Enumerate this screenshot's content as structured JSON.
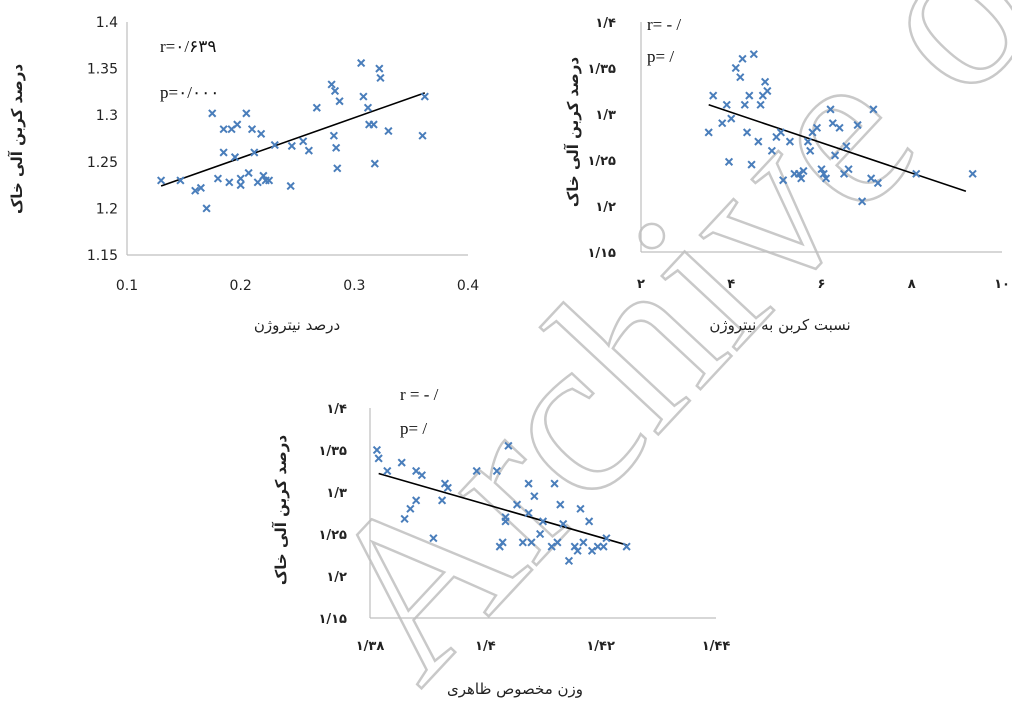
{
  "watermark": "Archive of SID",
  "chart_data": [
    {
      "type": "scatter",
      "title": "",
      "xlabel": "درصد نیتروژن",
      "ylabel": "درصد کربن آلی خاک",
      "xlim": [
        0.1,
        0.4
      ],
      "ylim": [
        1.15,
        1.4
      ],
      "xticks": [
        "0.1",
        "0.2",
        "0.3",
        "0.4"
      ],
      "yticks": [
        "1.15",
        "1.2",
        "1.25",
        "1.3",
        "1.35",
        "1.4"
      ],
      "annotations": [
        "r=۰/۶۳۹",
        "p=۰/۰۰۰"
      ],
      "marker": "x",
      "color": "#4a7ebb",
      "trendline": {
        "x": [
          0.13,
          0.362
        ],
        "y": [
          1.224,
          1.324
        ]
      },
      "points": [
        {
          "x": 0.13,
          "y": 1.23
        },
        {
          "x": 0.147,
          "y": 1.23
        },
        {
          "x": 0.16,
          "y": 1.219
        },
        {
          "x": 0.165,
          "y": 1.222
        },
        {
          "x": 0.17,
          "y": 1.2
        },
        {
          "x": 0.175,
          "y": 1.302
        },
        {
          "x": 0.18,
          "y": 1.232
        },
        {
          "x": 0.185,
          "y": 1.26
        },
        {
          "x": 0.185,
          "y": 1.285
        },
        {
          "x": 0.19,
          "y": 1.228
        },
        {
          "x": 0.192,
          "y": 1.285
        },
        {
          "x": 0.195,
          "y": 1.255
        },
        {
          "x": 0.197,
          "y": 1.29
        },
        {
          "x": 0.2,
          "y": 1.232
        },
        {
          "x": 0.2,
          "y": 1.225
        },
        {
          "x": 0.205,
          "y": 1.302
        },
        {
          "x": 0.207,
          "y": 1.238
        },
        {
          "x": 0.21,
          "y": 1.285
        },
        {
          "x": 0.212,
          "y": 1.26
        },
        {
          "x": 0.215,
          "y": 1.228
        },
        {
          "x": 0.218,
          "y": 1.28
        },
        {
          "x": 0.22,
          "y": 1.235
        },
        {
          "x": 0.222,
          "y": 1.23
        },
        {
          "x": 0.225,
          "y": 1.23
        },
        {
          "x": 0.23,
          "y": 1.268
        },
        {
          "x": 0.244,
          "y": 1.224
        },
        {
          "x": 0.245,
          "y": 1.267
        },
        {
          "x": 0.255,
          "y": 1.272
        },
        {
          "x": 0.26,
          "y": 1.262
        },
        {
          "x": 0.267,
          "y": 1.308
        },
        {
          "x": 0.28,
          "y": 1.333
        },
        {
          "x": 0.282,
          "y": 1.278
        },
        {
          "x": 0.283,
          "y": 1.326
        },
        {
          "x": 0.284,
          "y": 1.265
        },
        {
          "x": 0.285,
          "y": 1.243
        },
        {
          "x": 0.287,
          "y": 1.315
        },
        {
          "x": 0.306,
          "y": 1.356
        },
        {
          "x": 0.308,
          "y": 1.32
        },
        {
          "x": 0.312,
          "y": 1.308
        },
        {
          "x": 0.313,
          "y": 1.29
        },
        {
          "x": 0.317,
          "y": 1.29
        },
        {
          "x": 0.318,
          "y": 1.248
        },
        {
          "x": 0.322,
          "y": 1.35
        },
        {
          "x": 0.323,
          "y": 1.34
        },
        {
          "x": 0.33,
          "y": 1.283
        },
        {
          "x": 0.36,
          "y": 1.278
        },
        {
          "x": 0.362,
          "y": 1.32
        }
      ]
    },
    {
      "type": "scatter",
      "title": "",
      "xlabel": "نسبت کربن به نیتروژن",
      "ylabel": "درصد کربن آلی خاک",
      "xlim": [
        2,
        10
      ],
      "ylim": [
        1.15,
        1.4
      ],
      "xticks": [
        "۲",
        "۴",
        "۶",
        "۸",
        "۱۰"
      ],
      "yticks": [
        "۱/۱۵",
        "۱/۲",
        "۱/۲۵",
        "۱/۳",
        "۱/۳۵",
        "۱/۴"
      ],
      "annotations": [
        "r= -  /",
        "p=  /"
      ],
      "marker": "x",
      "color": "#4a7ebb",
      "trendline": {
        "x": [
          3.5,
          9.2
        ],
        "y": [
          1.31,
          1.216
        ]
      },
      "points": [
        {
          "x": 3.5,
          "y": 1.28
        },
        {
          "x": 3.6,
          "y": 1.32
        },
        {
          "x": 3.8,
          "y": 1.29
        },
        {
          "x": 3.9,
          "y": 1.31
        },
        {
          "x": 3.95,
          "y": 1.248
        },
        {
          "x": 4.0,
          "y": 1.295
        },
        {
          "x": 4.1,
          "y": 1.35
        },
        {
          "x": 4.2,
          "y": 1.34
        },
        {
          "x": 4.25,
          "y": 1.36
        },
        {
          "x": 4.3,
          "y": 1.31
        },
        {
          "x": 4.35,
          "y": 1.28
        },
        {
          "x": 4.4,
          "y": 1.32
        },
        {
          "x": 4.45,
          "y": 1.245
        },
        {
          "x": 4.5,
          "y": 1.365
        },
        {
          "x": 4.6,
          "y": 1.27
        },
        {
          "x": 4.65,
          "y": 1.31
        },
        {
          "x": 4.7,
          "y": 1.32
        },
        {
          "x": 4.75,
          "y": 1.335
        },
        {
          "x": 4.8,
          "y": 1.325
        },
        {
          "x": 4.9,
          "y": 1.26
        },
        {
          "x": 5.0,
          "y": 1.275
        },
        {
          "x": 5.1,
          "y": 1.28
        },
        {
          "x": 5.15,
          "y": 1.228
        },
        {
          "x": 5.3,
          "y": 1.27
        },
        {
          "x": 5.4,
          "y": 1.235
        },
        {
          "x": 5.5,
          "y": 1.235
        },
        {
          "x": 5.55,
          "y": 1.23
        },
        {
          "x": 5.6,
          "y": 1.238
        },
        {
          "x": 5.7,
          "y": 1.27
        },
        {
          "x": 5.75,
          "y": 1.26
        },
        {
          "x": 5.8,
          "y": 1.28
        },
        {
          "x": 5.9,
          "y": 1.285
        },
        {
          "x": 6.0,
          "y": 1.24
        },
        {
          "x": 6.05,
          "y": 1.235
        },
        {
          "x": 6.1,
          "y": 1.23
        },
        {
          "x": 6.2,
          "y": 1.305
        },
        {
          "x": 6.25,
          "y": 1.29
        },
        {
          "x": 6.3,
          "y": 1.255
        },
        {
          "x": 6.4,
          "y": 1.285
        },
        {
          "x": 6.5,
          "y": 1.235
        },
        {
          "x": 6.55,
          "y": 1.265
        },
        {
          "x": 6.6,
          "y": 1.24
        },
        {
          "x": 6.8,
          "y": 1.288
        },
        {
          "x": 6.9,
          "y": 1.205
        },
        {
          "x": 7.1,
          "y": 1.23
        },
        {
          "x": 7.15,
          "y": 1.305
        },
        {
          "x": 7.25,
          "y": 1.225
        },
        {
          "x": 8.1,
          "y": 1.235
        },
        {
          "x": 9.35,
          "y": 1.235
        }
      ]
    },
    {
      "type": "scatter",
      "title": "",
      "xlabel": "وزن مخصوص ظاهری",
      "ylabel": "درصد کربن آلی خاک",
      "xlim": [
        1.38,
        1.44
      ],
      "ylim": [
        1.15,
        1.4
      ],
      "xticks": [
        "۱/۳۸",
        "۱/۴",
        "۱/۴۲",
        "۱/۴۴"
      ],
      "yticks": [
        "۱/۱۵",
        "۱/۲",
        "۱/۲۵",
        "۱/۳",
        "۱/۳۵",
        "۱/۴"
      ],
      "annotations": [
        "r = -  /",
        "p=  /"
      ],
      "marker": "x",
      "color": "#4a7ebb",
      "trendline": {
        "x": [
          1.3815,
          1.4245
        ],
        "y": [
          1.322,
          1.237
        ]
      },
      "points": [
        {
          "x": 1.3812,
          "y": 1.35
        },
        {
          "x": 1.3815,
          "y": 1.34
        },
        {
          "x": 1.383,
          "y": 1.325
        },
        {
          "x": 1.3855,
          "y": 1.335
        },
        {
          "x": 1.386,
          "y": 1.268
        },
        {
          "x": 1.387,
          "y": 1.28
        },
        {
          "x": 1.388,
          "y": 1.29
        },
        {
          "x": 1.388,
          "y": 1.325
        },
        {
          "x": 1.389,
          "y": 1.32
        },
        {
          "x": 1.391,
          "y": 1.245
        },
        {
          "x": 1.3925,
          "y": 1.29
        },
        {
          "x": 1.393,
          "y": 1.31
        },
        {
          "x": 1.3935,
          "y": 1.305
        },
        {
          "x": 1.3985,
          "y": 1.325
        },
        {
          "x": 1.402,
          "y": 1.325
        },
        {
          "x": 1.4025,
          "y": 1.235
        },
        {
          "x": 1.403,
          "y": 1.24
        },
        {
          "x": 1.4035,
          "y": 1.27
        },
        {
          "x": 1.4035,
          "y": 1.265
        },
        {
          "x": 1.404,
          "y": 1.355
        },
        {
          "x": 1.4055,
          "y": 1.285
        },
        {
          "x": 1.4065,
          "y": 1.24
        },
        {
          "x": 1.4075,
          "y": 1.31
        },
        {
          "x": 1.4075,
          "y": 1.275
        },
        {
          "x": 1.408,
          "y": 1.24
        },
        {
          "x": 1.4085,
          "y": 1.295
        },
        {
          "x": 1.4095,
          "y": 1.25
        },
        {
          "x": 1.41,
          "y": 1.265
        },
        {
          "x": 1.4115,
          "y": 1.235
        },
        {
          "x": 1.412,
          "y": 1.31
        },
        {
          "x": 1.4125,
          "y": 1.24
        },
        {
          "x": 1.413,
          "y": 1.285
        },
        {
          "x": 1.4135,
          "y": 1.262
        },
        {
          "x": 1.4145,
          "y": 1.218
        },
        {
          "x": 1.4155,
          "y": 1.235
        },
        {
          "x": 1.416,
          "y": 1.23
        },
        {
          "x": 1.4165,
          "y": 1.28
        },
        {
          "x": 1.417,
          "y": 1.24
        },
        {
          "x": 1.418,
          "y": 1.265
        },
        {
          "x": 1.4185,
          "y": 1.23
        },
        {
          "x": 1.4195,
          "y": 1.235
        },
        {
          "x": 1.4205,
          "y": 1.235
        },
        {
          "x": 1.421,
          "y": 1.245
        },
        {
          "x": 1.4245,
          "y": 1.235
        }
      ]
    }
  ]
}
